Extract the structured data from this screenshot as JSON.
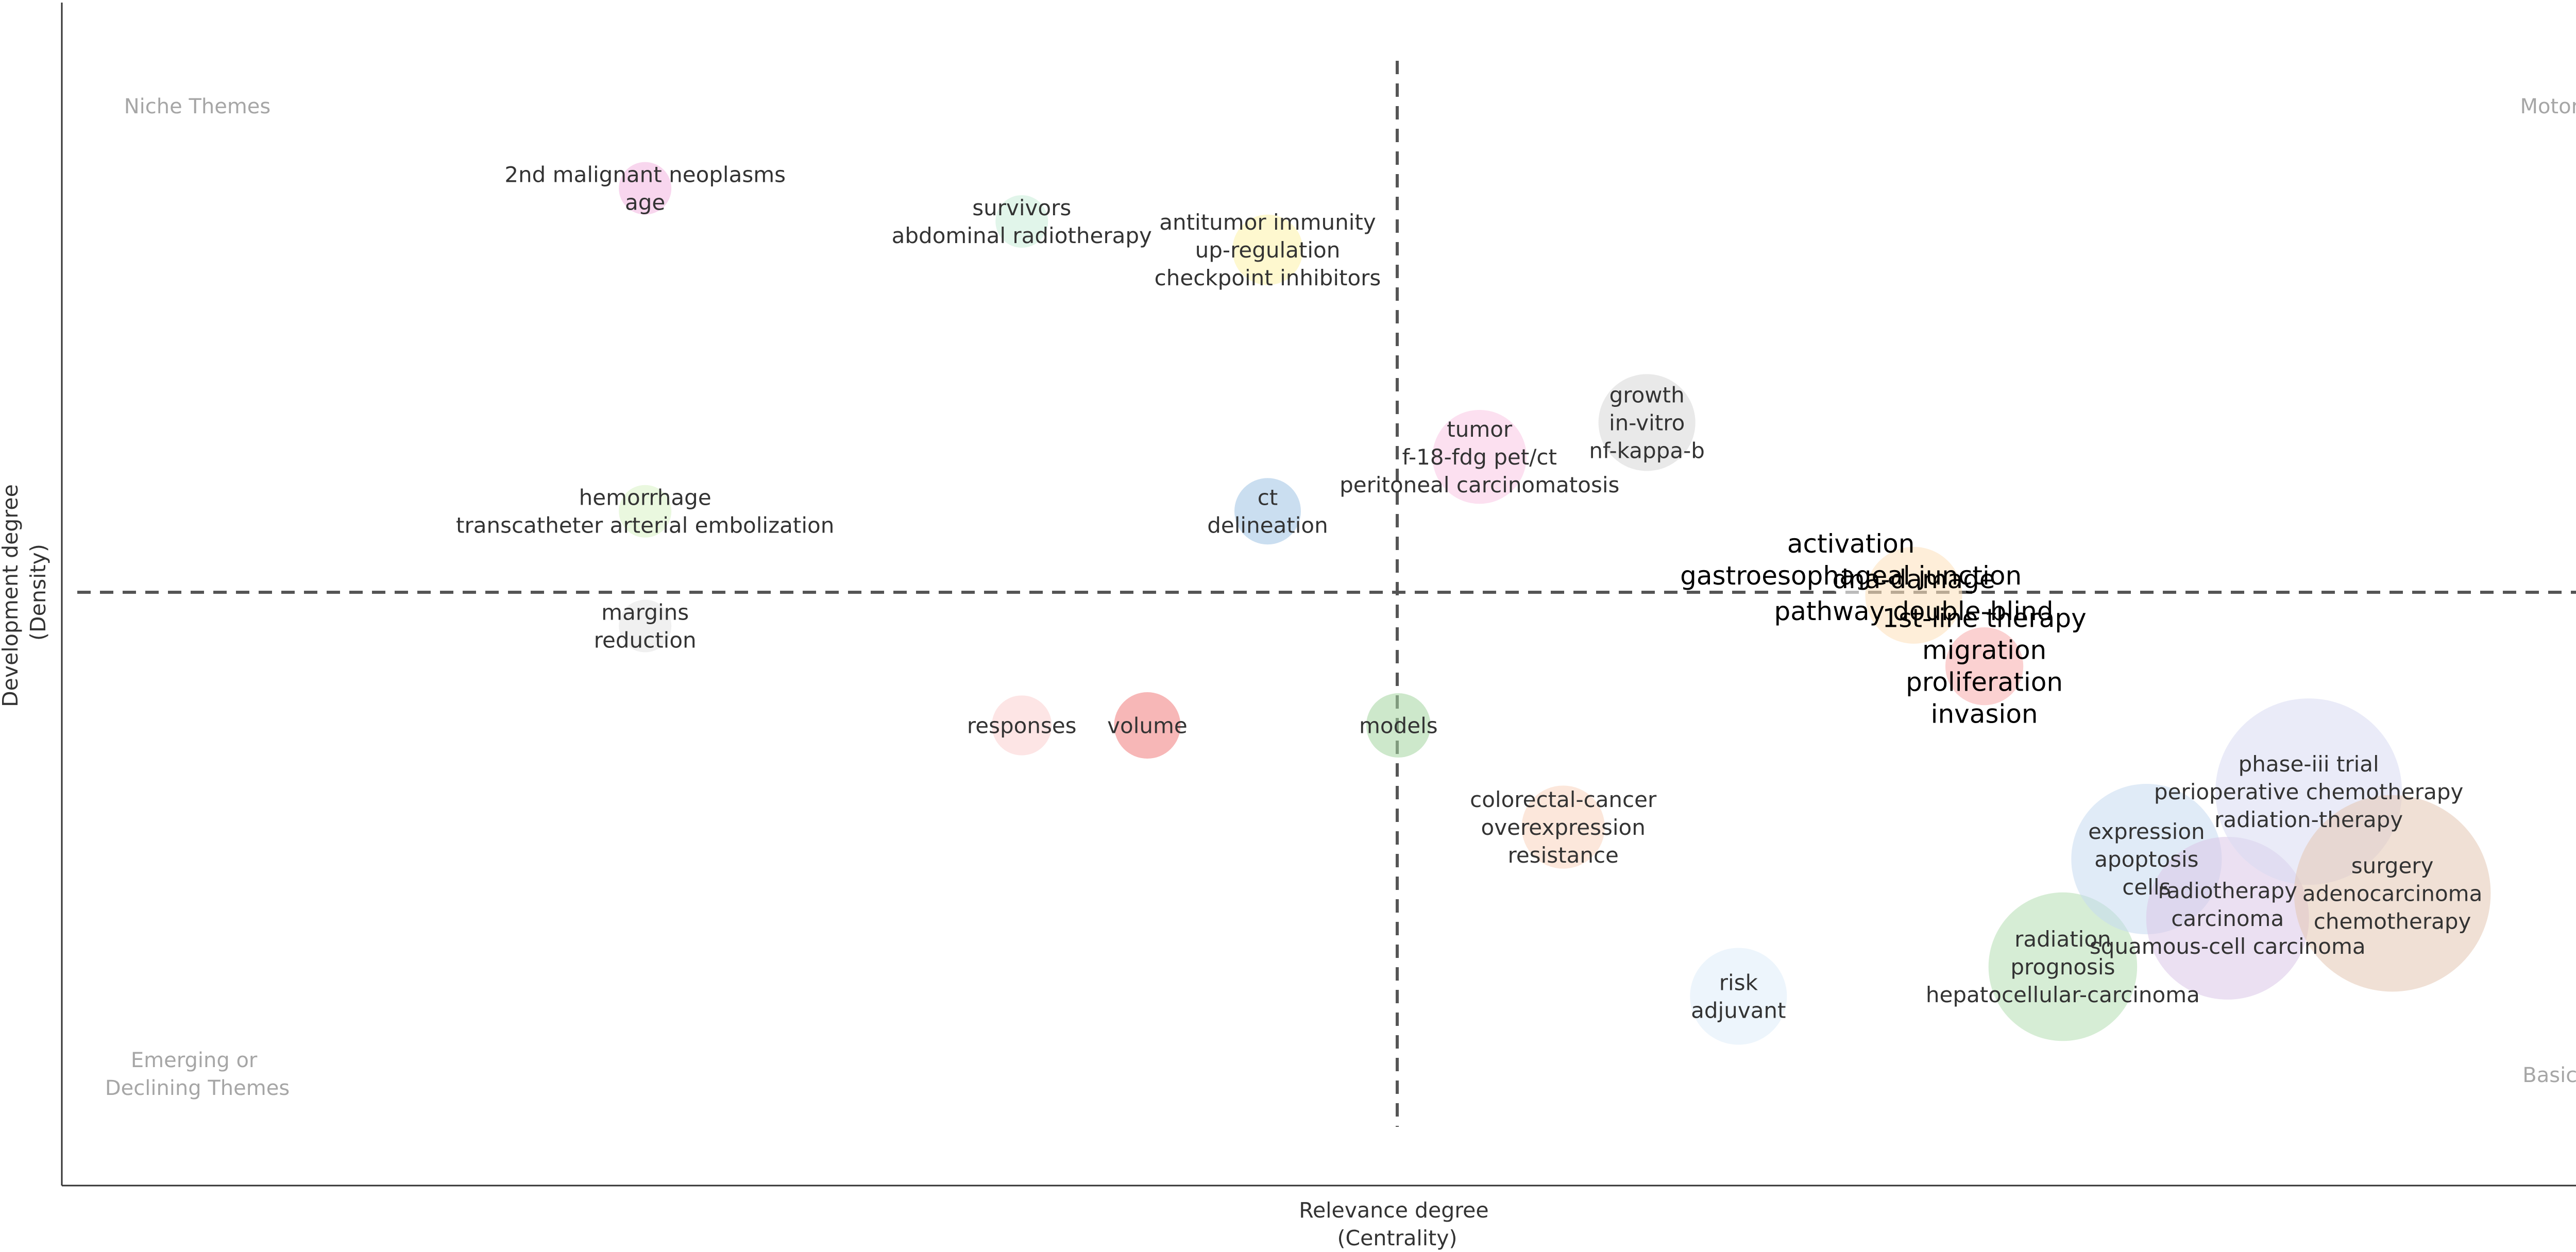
{
  "chart_data": {
    "type": "scatter",
    "xlabel": [
      "Relevance degree",
      "(Centrality)"
    ],
    "ylabel": [
      "Development degree",
      "(Density)"
    ],
    "xlim": [
      0,
      1
    ],
    "ylim": [
      0,
      1
    ],
    "quadrant_labels": {
      "top_left": [
        "Niche Themes"
      ],
      "top_right": [
        "Motor Themes"
      ],
      "bottom_left": [
        "Emerging or",
        "Declining Themes"
      ],
      "bottom_right": [
        "Basic Themes"
      ]
    },
    "points": [
      {
        "x": 0.223,
        "y": 0.843,
        "size": 1,
        "color": "#f2b5e0",
        "labels": [
          "2nd malignant neoplasms",
          "age"
        ]
      },
      {
        "x": 0.367,
        "y": 0.815,
        "size": 1,
        "color": "#c9ecd9",
        "labels": [
          "survivors",
          "abdominal radiotherapy"
        ]
      },
      {
        "x": 0.461,
        "y": 0.791,
        "size": 1.8,
        "color": "#fdf3a8",
        "labels": [
          "antitumor immunity",
          "up-regulation",
          "checkpoint inhibitors"
        ]
      },
      {
        "x": 0.223,
        "y": 0.57,
        "size": 1,
        "color": "#d9f2c4",
        "labels": [
          "hemorrhage",
          "transcatheter arterial embolization"
        ]
      },
      {
        "x": 0.461,
        "y": 0.57,
        "size": 1.6,
        "color": "#9ec3e4",
        "labels": [
          "ct",
          "delineation"
        ]
      },
      {
        "x": 0.542,
        "y": 0.616,
        "size": 3.2,
        "color": "#f9c6e4",
        "labels": [
          "tumor",
          "f-18-fdg pet/ct",
          "peritoneal carcinomatosis"
        ]
      },
      {
        "x": 0.606,
        "y": 0.645,
        "size": 3.4,
        "color": "#d7d7d7",
        "labels": [
          "growth",
          "in-vitro",
          "nf-kappa-b"
        ]
      },
      {
        "x": 0.223,
        "y": 0.473,
        "size": 1,
        "color": "#e4e4e4",
        "labels": [
          "margins",
          "reduction"
        ]
      },
      {
        "x": 0.367,
        "y": 0.389,
        "size": 1.3,
        "color": "#fbd0d0",
        "labels": [
          "responses"
        ]
      },
      {
        "x": 0.415,
        "y": 0.389,
        "size": 1.6,
        "color": "#f07c7c",
        "labels": [
          "volume"
        ]
      },
      {
        "x": 0.511,
        "y": 0.389,
        "size": 1.5,
        "color": "#a4d6a0",
        "labels": [
          "models"
        ]
      },
      {
        "x": 0.574,
        "y": 0.303,
        "size": 2.5,
        "color": "#f9d3bd",
        "labels": [
          "colorectal-cancer",
          "overexpression",
          "resistance"
        ]
      },
      {
        "x": 0.641,
        "y": 0.16,
        "size": 3.4,
        "color": "#deedf9",
        "labels": [
          "risk",
          "adjuvant"
        ]
      },
      {
        "x": 0.684,
        "y": 0.529,
        "size": 1.8,
        "color": "#ffffff",
        "big": true,
        "labels": [
          "activation",
          "gastroesophageal junction"
        ]
      },
      {
        "x": 0.708,
        "y": 0.499,
        "size": 3.4,
        "color": "#fde3c0",
        "big": true,
        "labels": [
          "dna-damage",
          "pathway double-blind"
        ]
      },
      {
        "x": 0.735,
        "y": 0.439,
        "size": 2.2,
        "color": "#f8b3b3",
        "big": true,
        "labels": [
          "1st-line therapy",
          "migration",
          "proliferation",
          "invasion"
        ]
      },
      {
        "x": 0.765,
        "y": 0.185,
        "size": 8,
        "color": "#b4dfb2",
        "labels": [
          "radiation",
          "prognosis",
          "hepatocellular-carcinoma"
        ]
      },
      {
        "x": 0.797,
        "y": 0.276,
        "size": 8.2,
        "color": "#c7daf0",
        "labels": [
          "expression",
          "apoptosis",
          "cells"
        ]
      },
      {
        "x": 0.828,
        "y": 0.226,
        "size": 9.6,
        "color": "#dac7e8",
        "labels": [
          "radiotherapy",
          "carcinoma",
          "squamous-cell carcinoma"
        ]
      },
      {
        "x": 0.859,
        "y": 0.333,
        "size": 12.6,
        "color": "#d8dbf2",
        "labels": [
          "phase-iii trial",
          "perioperative chemotherapy",
          "radiation-therapy"
        ]
      },
      {
        "x": 0.891,
        "y": 0.247,
        "size": 14,
        "color": "#e3c6b3",
        "labels": [
          "surgery",
          "adenocarcinoma",
          "chemotherapy"
        ]
      }
    ]
  }
}
